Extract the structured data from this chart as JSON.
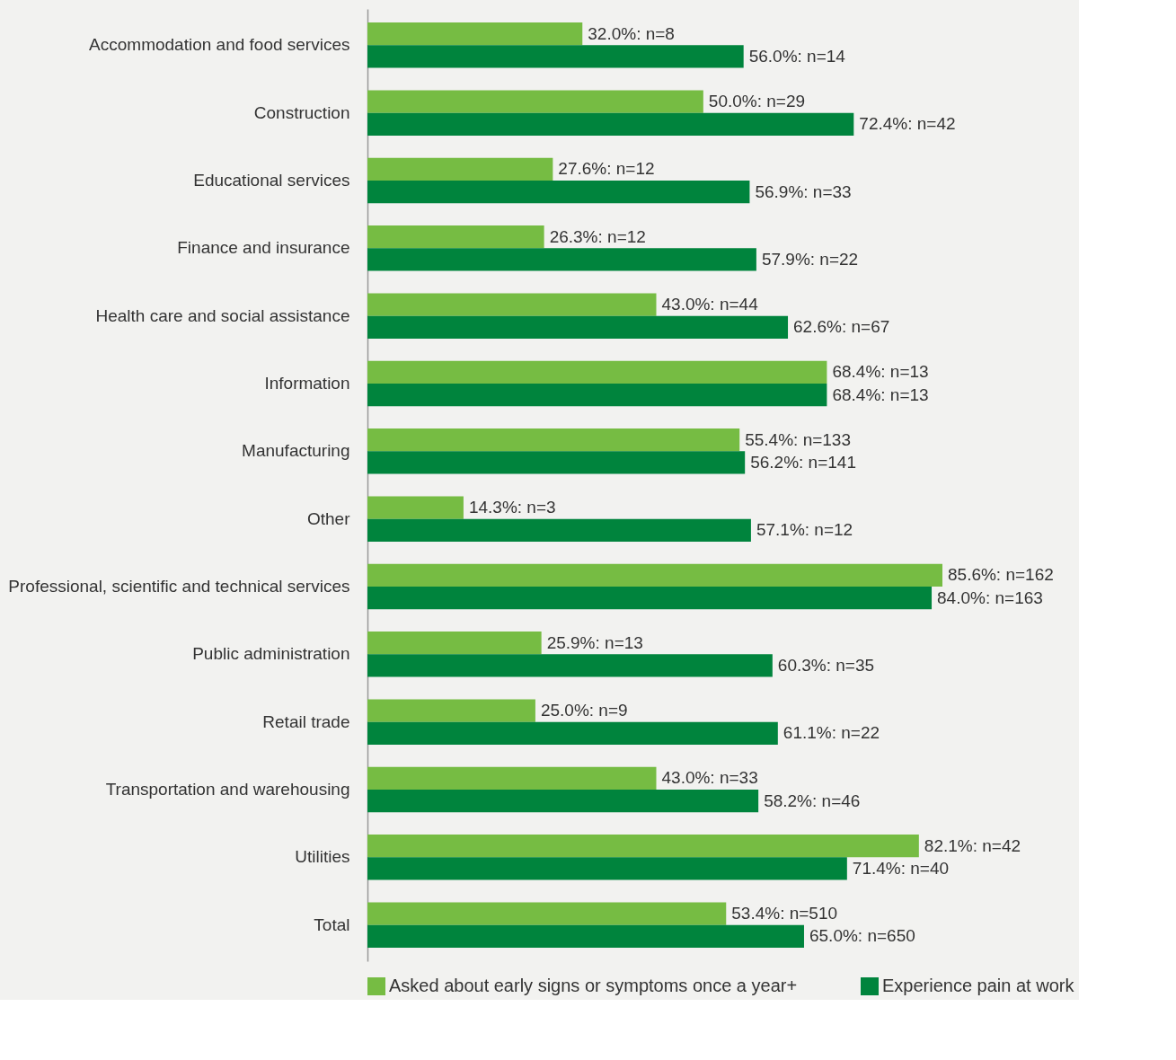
{
  "chart_data": {
    "type": "bar",
    "orientation": "horizontal",
    "legend": "bottom",
    "categories": [
      "Accommodation and food services",
      "Construction",
      "Educational services",
      "Finance and insurance",
      "Health care and social assistance",
      "Information",
      "Manufacturing",
      "Other",
      "Professional, scientific and technical services",
      "Public administration",
      "Retail trade",
      "Transportation and warehousing",
      "Utilities",
      "Total"
    ],
    "series": [
      {
        "name": "Asked about early signs or symptoms once a year+",
        "color": "#76bc43",
        "values": [
          32.0,
          50.0,
          27.6,
          26.3,
          43.0,
          68.4,
          55.4,
          14.3,
          85.6,
          25.9,
          25.0,
          43.0,
          82.1,
          53.4
        ],
        "value_labels": [
          "32.0%: n=8",
          "50.0%: n=29",
          "27.6%: n=12",
          "26.3%: n=12",
          "43.0%: n=44",
          "68.4%: n=13",
          "55.4%: n=133",
          "14.3%: n=3",
          "85.6%: n=162",
          "25.9%: n=13",
          "25.0%: n=9",
          "43.0%: n=33",
          "82.1%: n=42",
          "53.4%: n=510"
        ]
      },
      {
        "name": "Experience pain at work",
        "color": "#00843d",
        "values": [
          56.0,
          72.4,
          56.9,
          57.9,
          62.6,
          68.4,
          56.2,
          57.1,
          84.0,
          60.3,
          61.1,
          58.2,
          71.4,
          65.0
        ],
        "value_labels": [
          "56.0%: n=14",
          "72.4%: n=42",
          "56.9%: n=33",
          "57.9%: n=22",
          "62.6%: n=67",
          "68.4%: n=13",
          "56.2%: n=141",
          "57.1%: n=12",
          "84.0%: n=163",
          "60.3%: n=35",
          "61.1%: n=22",
          "58.2%: n=46",
          "71.4%: n=40",
          "65.0%: n=650"
        ]
      }
    ]
  }
}
